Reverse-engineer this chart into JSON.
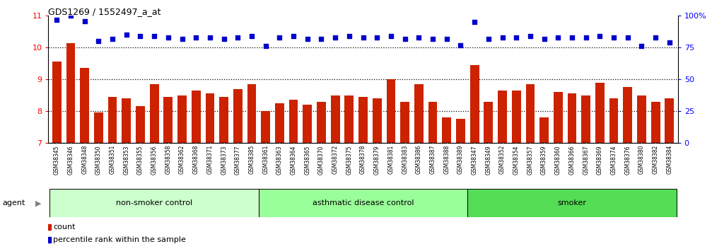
{
  "title": "GDS1269 / 1552497_a_at",
  "categories": [
    "GSM38345",
    "GSM38346",
    "GSM38348",
    "GSM38350",
    "GSM38351",
    "GSM38353",
    "GSM38355",
    "GSM38356",
    "GSM38358",
    "GSM38362",
    "GSM38368",
    "GSM38371",
    "GSM38373",
    "GSM38377",
    "GSM38385",
    "GSM38361",
    "GSM38363",
    "GSM38364",
    "GSM38365",
    "GSM38370",
    "GSM38372",
    "GSM38375",
    "GSM38378",
    "GSM38379",
    "GSM38381",
    "GSM38383",
    "GSM38386",
    "GSM38387",
    "GSM38388",
    "GSM38389",
    "GSM38347",
    "GSM38349",
    "GSM38352",
    "GSM38354",
    "GSM38357",
    "GSM38359",
    "GSM38360",
    "GSM38366",
    "GSM38367",
    "GSM38369",
    "GSM38374",
    "GSM38376",
    "GSM38380",
    "GSM38382",
    "GSM38384"
  ],
  "bar_values": [
    9.55,
    10.15,
    9.35,
    7.95,
    8.45,
    8.4,
    8.15,
    8.85,
    8.45,
    8.5,
    8.65,
    8.55,
    8.45,
    8.7,
    8.85,
    8.0,
    8.25,
    8.35,
    8.2,
    8.3,
    8.5,
    8.5,
    8.45,
    8.4,
    9.0,
    8.3,
    8.85,
    8.3,
    7.8,
    7.75,
    9.45,
    8.3,
    8.65,
    8.65,
    8.85,
    7.8,
    8.6,
    8.55,
    8.5,
    8.9,
    8.4,
    8.75,
    8.5,
    8.3,
    8.4
  ],
  "percentile_values": [
    97,
    100,
    96,
    80,
    82,
    85,
    84,
    84,
    83,
    82,
    83,
    83,
    82,
    83,
    84,
    76,
    83,
    84,
    82,
    82,
    83,
    84,
    83,
    83,
    84,
    82,
    83,
    82,
    82,
    77,
    95,
    82,
    83,
    83,
    84,
    82,
    83,
    83,
    83,
    84,
    83,
    83,
    76,
    83,
    79
  ],
  "groups": [
    {
      "label": "non-smoker control",
      "start": 0,
      "end": 15,
      "color": "#ccffcc"
    },
    {
      "label": "asthmatic disease control",
      "start": 15,
      "end": 30,
      "color": "#99ff99"
    },
    {
      "label": "smoker",
      "start": 30,
      "end": 45,
      "color": "#55dd55"
    }
  ],
  "ylim_left": [
    7,
    11
  ],
  "ylim_right": [
    0,
    100
  ],
  "yticks_left": [
    7,
    8,
    9,
    10,
    11
  ],
  "yticks_right": [
    0,
    25,
    50,
    75,
    100
  ],
  "ytick_labels_right": [
    "0",
    "25",
    "50",
    "75",
    "100%"
  ],
  "bar_color": "#cc2200",
  "dot_color": "#0000cc",
  "tick_bg_color": "#cccccc",
  "legend_items": [
    {
      "label": "count",
      "color": "#cc2200"
    },
    {
      "label": "percentile rank within the sample",
      "color": "#0000cc"
    }
  ]
}
